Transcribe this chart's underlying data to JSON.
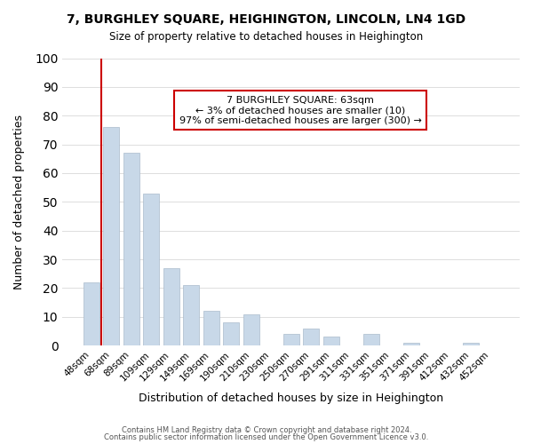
{
  "title": "7, BURGHLEY SQUARE, HEIGHINGTON, LINCOLN, LN4 1GD",
  "subtitle": "Size of property relative to detached houses in Heighington",
  "xlabel": "Distribution of detached houses by size in Heighington",
  "ylabel": "Number of detached properties",
  "categories": [
    "48sqm",
    "68sqm",
    "89sqm",
    "109sqm",
    "129sqm",
    "149sqm",
    "169sqm",
    "190sqm",
    "210sqm",
    "230sqm",
    "250sqm",
    "270sqm",
    "291sqm",
    "311sqm",
    "331sqm",
    "351sqm",
    "371sqm",
    "391sqm",
    "412sqm",
    "432sqm",
    "452sqm"
  ],
  "values": [
    22,
    76,
    67,
    53,
    27,
    21,
    12,
    8,
    11,
    0,
    4,
    6,
    3,
    0,
    4,
    0,
    1,
    0,
    0,
    1,
    0
  ],
  "bar_color": "#c8d8e8",
  "bar_edge_color": "#aabbcc",
  "annotation_title": "7 BURGHLEY SQUARE: 63sqm",
  "annotation_line1": "← 3% of detached houses are smaller (10)",
  "annotation_line2": "97% of semi-detached houses are larger (300) →",
  "annotation_box_color": "#ffffff",
  "annotation_box_edge": "#cc0000",
  "vline_color": "#cc0000",
  "vline_x": 0.5,
  "ylim": [
    0,
    100
  ],
  "yticks": [
    0,
    10,
    20,
    30,
    40,
    50,
    60,
    70,
    80,
    90,
    100
  ],
  "footer1": "Contains HM Land Registry data © Crown copyright and database right 2024.",
  "footer2": "Contains public sector information licensed under the Open Government Licence v3.0.",
  "background_color": "#ffffff",
  "grid_color": "#dddddd"
}
